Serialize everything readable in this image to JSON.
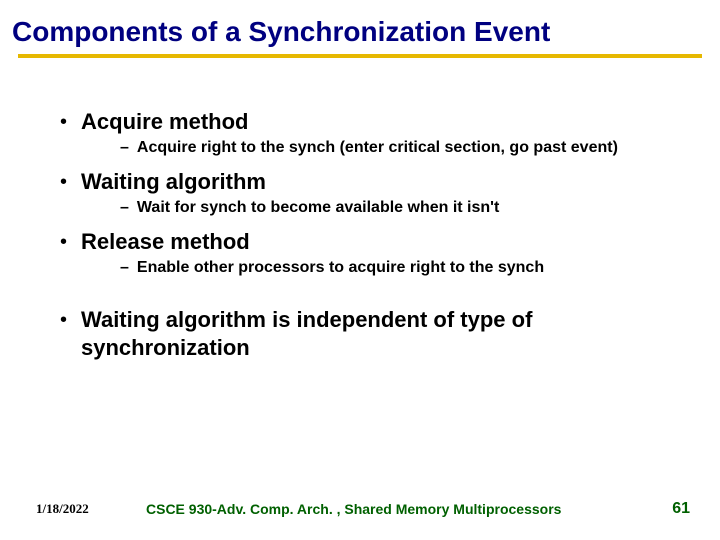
{
  "title": "Components of a Synchronization Event",
  "colors": {
    "title_color": "#000080",
    "underline_color": "#e6b800",
    "body_text_color": "#000000",
    "footer_accent_color": "#006000",
    "background_color": "#ffffff"
  },
  "bullets": [
    {
      "level": 1,
      "text": "Acquire method"
    },
    {
      "level": 2,
      "text": "Acquire right to the synch (enter critical section, go past event)"
    },
    {
      "level": 1,
      "text": "Waiting algorithm"
    },
    {
      "level": 2,
      "text": "Wait for synch to become available when it isn't"
    },
    {
      "level": 1,
      "text": "Release method"
    },
    {
      "level": 2,
      "text": "Enable other processors to acquire right to the synch"
    },
    {
      "level": 0,
      "text": ""
    },
    {
      "level": 1,
      "text": "Waiting algorithm is independent of type of synchronization"
    }
  ],
  "footer": {
    "date": "1/18/2022",
    "course": "CSCE 930-Adv. Comp. Arch. , Shared Memory Multiprocessors",
    "page": "61"
  }
}
